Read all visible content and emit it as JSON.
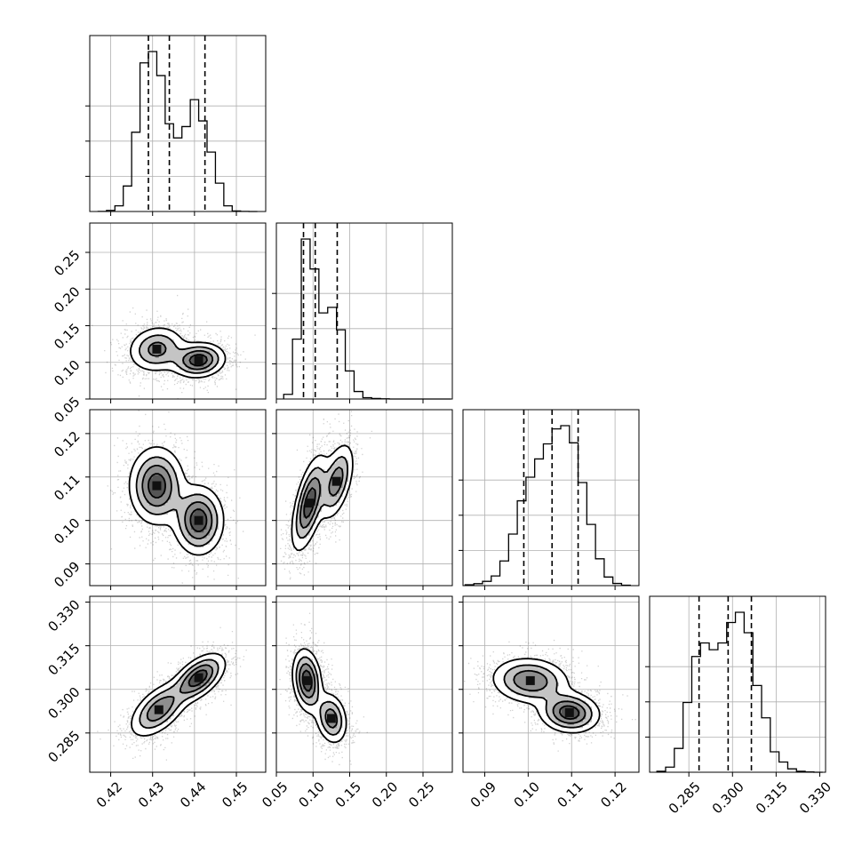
{
  "chart_data": {
    "type": "corner",
    "parameters": [
      {
        "range": [
          0.415,
          0.457
        ],
        "ticks": [
          "0.42",
          "0.43",
          "0.44",
          "0.45"
        ],
        "tick_values": [
          0.42,
          0.43,
          0.44,
          0.45
        ],
        "quantiles": [
          0.429,
          0.434,
          0.4425
        ],
        "histogram": {
          "bin_edges": [
            0.417,
            0.419,
            0.421,
            0.423,
            0.425,
            0.427,
            0.429,
            0.431,
            0.433,
            0.435,
            0.437,
            0.439,
            0.441,
            0.443,
            0.445,
            0.447,
            0.449,
            0.451,
            0.453,
            0.455
          ],
          "counts": [
            1,
            8,
            40,
            180,
            560,
            1050,
            1130,
            960,
            620,
            520,
            600,
            790,
            640,
            420,
            200,
            40,
            4,
            1,
            0
          ]
        }
      },
      {
        "range": [
          0.05,
          0.29
        ],
        "ticks": [
          "0.05",
          "0.10",
          "0.15",
          "0.20",
          "0.25"
        ],
        "tick_values": [
          0.05,
          0.1,
          0.15,
          0.2,
          0.25
        ],
        "quantiles": [
          0.087,
          0.103,
          0.133
        ],
        "histogram": {
          "bin_edges": [
            0.06,
            0.072,
            0.084,
            0.096,
            0.108,
            0.12,
            0.132,
            0.144,
            0.156,
            0.168,
            0.18,
            0.192,
            0.204,
            0.216,
            0.228,
            0.24,
            0.252,
            0.264,
            0.276,
            0.288
          ],
          "counts": [
            50,
            640,
            1710,
            1390,
            920,
            980,
            740,
            300,
            80,
            14,
            6,
            2,
            0,
            0,
            0,
            0,
            0,
            0,
            0
          ]
        }
      },
      {
        "range": [
          0.085,
          0.1255
        ],
        "ticks": [
          "0.09",
          "0.10",
          "0.11",
          "0.12"
        ],
        "tick_values": [
          0.09,
          0.1,
          0.11,
          0.12
        ],
        "quantiles": [
          0.099,
          0.1055,
          0.1115
        ],
        "histogram": {
          "bin_edges": [
            0.0855,
            0.0875,
            0.0895,
            0.0915,
            0.0935,
            0.0955,
            0.0975,
            0.0995,
            0.1015,
            0.1035,
            0.1055,
            0.1075,
            0.1095,
            0.1115,
            0.1135,
            0.1155,
            0.1175,
            0.1195,
            0.1215,
            0.1235
          ],
          "counts": [
            8,
            18,
            40,
            90,
            230,
            480,
            790,
            1010,
            1180,
            1320,
            1460,
            1490,
            1330,
            960,
            570,
            250,
            80,
            20,
            4
          ]
        }
      },
      {
        "range": [
          0.2715,
          0.332
        ],
        "ticks": [
          "0.285",
          "0.300",
          "0.315",
          "0.330"
        ],
        "tick_values": [
          0.285,
          0.3,
          0.315,
          0.33
        ],
        "quantiles": [
          0.2885,
          0.2985,
          0.3065
        ],
        "histogram": {
          "bin_edges": [
            0.274,
            0.277,
            0.28,
            0.283,
            0.286,
            0.289,
            0.292,
            0.295,
            0.298,
            0.301,
            0.304,
            0.307,
            0.31,
            0.313,
            0.316,
            0.319,
            0.322,
            0.325,
            0.328,
            0.331
          ],
          "counts": [
            6,
            30,
            140,
            410,
            680,
            760,
            720,
            760,
            880,
            940,
            820,
            510,
            320,
            120,
            60,
            20,
            6,
            2,
            0
          ]
        }
      }
    ],
    "pairs": [
      {
        "x": 0,
        "y": 1,
        "components": [
          {
            "w": 0.5,
            "mx": 0.431,
            "my": 0.118,
            "sx": 0.0035,
            "sy": 0.016,
            "rho": 0.1
          },
          {
            "w": 0.5,
            "mx": 0.441,
            "my": 0.103,
            "sx": 0.0032,
            "sy": 0.012,
            "rho": 0.1
          }
        ]
      },
      {
        "x": 0,
        "y": 2,
        "components": [
          {
            "w": 0.55,
            "mx": 0.431,
            "my": 0.108,
            "sx": 0.0033,
            "sy": 0.0045,
            "rho": 0
          },
          {
            "w": 0.45,
            "mx": 0.441,
            "my": 0.1,
            "sx": 0.003,
            "sy": 0.004,
            "rho": 0
          }
        ]
      },
      {
        "x": 1,
        "y": 2,
        "components": [
          {
            "w": 0.6,
            "mx": 0.095,
            "my": 0.104,
            "sx": 0.012,
            "sy": 0.0055,
            "rho": 0.6
          },
          {
            "w": 0.4,
            "mx": 0.132,
            "my": 0.109,
            "sx": 0.012,
            "sy": 0.0045,
            "rho": 0.5
          }
        ]
      },
      {
        "x": 0,
        "y": 3,
        "components": [
          {
            "w": 0.5,
            "mx": 0.4315,
            "my": 0.293,
            "sx": 0.0035,
            "sy": 0.0048,
            "rho": 0.55
          },
          {
            "w": 0.5,
            "mx": 0.441,
            "my": 0.304,
            "sx": 0.0032,
            "sy": 0.0042,
            "rho": 0.55
          }
        ]
      },
      {
        "x": 1,
        "y": 3,
        "components": [
          {
            "w": 0.6,
            "mx": 0.092,
            "my": 0.303,
            "sx": 0.01,
            "sy": 0.0055,
            "rho": -0.2
          },
          {
            "w": 0.4,
            "mx": 0.125,
            "my": 0.29,
            "sx": 0.011,
            "sy": 0.0045,
            "rho": -0.2
          }
        ]
      },
      {
        "x": 2,
        "y": 3,
        "components": [
          {
            "w": 0.55,
            "mx": 0.1005,
            "my": 0.303,
            "sx": 0.0045,
            "sy": 0.004,
            "rho": -0.1
          },
          {
            "w": 0.45,
            "mx": 0.1095,
            "my": 0.292,
            "sx": 0.0035,
            "sy": 0.0035,
            "rho": -0.1
          }
        ]
      }
    ],
    "grid": true,
    "colors": {
      "ink": "#000000",
      "grid": "#b0b0b0",
      "background": "#ffffff"
    }
  }
}
